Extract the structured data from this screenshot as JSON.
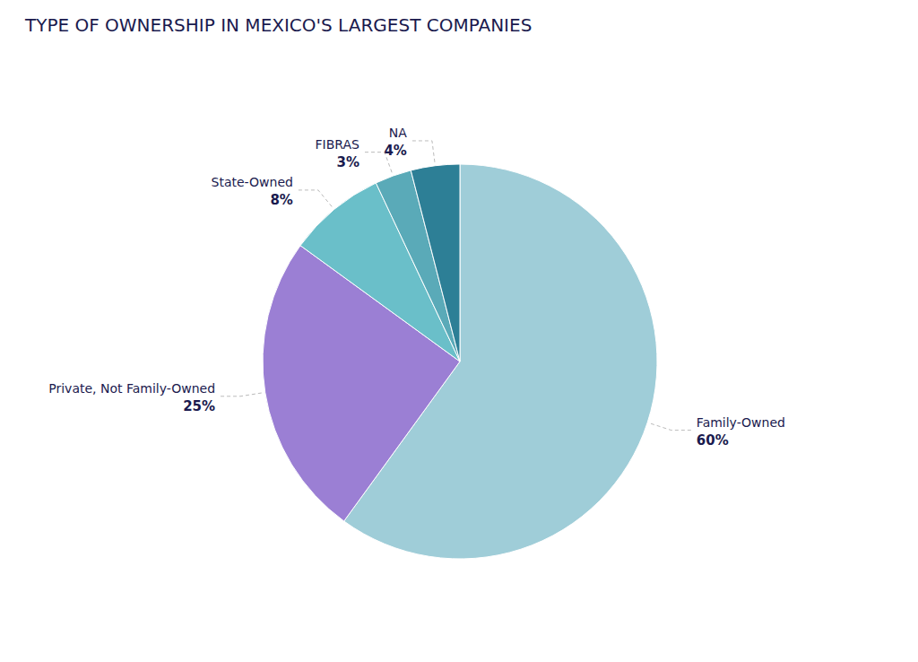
{
  "chart_data": {
    "type": "pie",
    "title": "TYPE OF OWNERSHIP IN MEXICO'S LARGEST COMPANIES",
    "categories": [
      "Family-Owned",
      "Private, Not Family-Owned",
      "State-Owned",
      "FIBRAS",
      "NA"
    ],
    "values": [
      60,
      25,
      8,
      3,
      4
    ],
    "value_labels": [
      "60%",
      "25%",
      "8%",
      "3%",
      "4%"
    ],
    "colors": [
      "#9fcdd8",
      "#9b7fd4",
      "#6abfc9",
      "#5aaab8",
      "#2d7f96"
    ],
    "data_labels": true
  }
}
